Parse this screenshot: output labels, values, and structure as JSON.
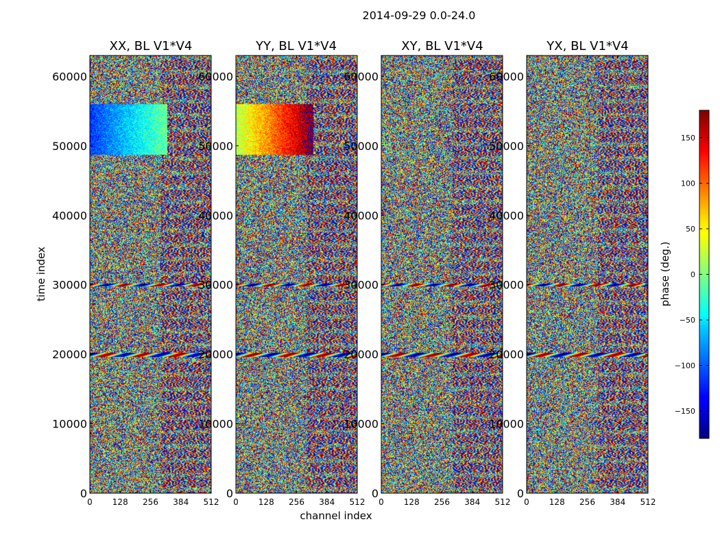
{
  "chart_data": {
    "type": "heatmap",
    "title": "2014-09-29 0.0-24.0",
    "xlabel": "channel index",
    "ylabel": "time index",
    "xlim": [
      0,
      512
    ],
    "ylim": [
      0,
      63000
    ],
    "xticks": [
      0,
      128,
      256,
      384,
      512
    ],
    "yticks": [
      0,
      10000,
      20000,
      30000,
      40000,
      50000,
      60000
    ],
    "panels": [
      {
        "id": "XX",
        "title": "XX, BL V1*V4"
      },
      {
        "id": "YY",
        "title": "YY, BL V1*V4"
      },
      {
        "id": "XY",
        "title": "XY, BL V1*V4"
      },
      {
        "id": "YX",
        "title": "YX, BL V1*V4"
      }
    ],
    "colorbar": {
      "label": "phase (deg.)",
      "range": [
        -180,
        180
      ],
      "ticks": [
        150,
        100,
        50,
        0,
        -50,
        -100,
        -150
      ],
      "tick_labels": [
        "150",
        "100",
        "50",
        "0",
        "−50",
        "−100",
        "−150"
      ],
      "colormap": "jet"
    },
    "features": [
      {
        "panel": "XX",
        "t_range": [
          48800,
          56000
        ],
        "ch_range": [
          0,
          325
        ],
        "description": "coherent phase gradient"
      },
      {
        "panel": "YY",
        "t_range": [
          48800,
          56000
        ],
        "ch_range": [
          0,
          325
        ],
        "description": "coherent phase gradient"
      },
      {
        "panel": "all",
        "t_range": [
          29800,
          30200
        ],
        "description": "horizontal stripe"
      },
      {
        "panel": "all",
        "t_range": [
          19700,
          20300
        ],
        "description": "horizontal stripe"
      }
    ]
  }
}
